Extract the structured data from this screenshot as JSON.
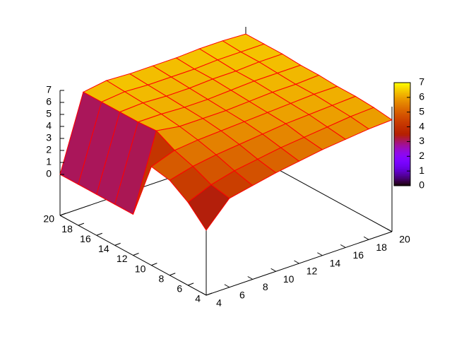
{
  "chart_data": {
    "type": "surface3d",
    "x": [
      4,
      6,
      8,
      10,
      12,
      14,
      16,
      18,
      20
    ],
    "y": [
      4,
      6,
      8,
      10,
      12,
      14,
      16,
      18,
      20
    ],
    "z": [
      [
        2,
        4,
        4.4,
        4.8,
        5.1,
        5.4,
        5.6,
        5.8,
        5.9
      ],
      [
        3.5,
        4.3,
        4.8,
        5.1,
        5.4,
        5.6,
        5.8,
        6.0,
        6.1
      ],
      [
        4.5,
        5.0,
        5.3,
        5.5,
        5.7,
        5.9,
        6.0,
        6.1,
        6.2
      ],
      [
        4.8,
        5.5,
        5.7,
        5.8,
        5.9,
        6.0,
        6.1,
        6.2,
        6.2
      ],
      [
        0,
        6.3,
        6.0,
        6.0,
        6.0,
        6.1,
        6.2,
        6.2,
        6.3
      ],
      [
        0,
        6.2,
        6.2,
        6.1,
        6.1,
        6.2,
        6.3,
        6.3,
        6.3
      ],
      [
        0,
        6.2,
        6.3,
        6.2,
        6.2,
        6.3,
        6.3,
        6.4,
        6.4
      ],
      [
        0,
        6.2,
        6.4,
        6.3,
        6.3,
        6.3,
        6.4,
        6.4,
        6.4
      ],
      [
        0,
        6.2,
        6.5,
        6.4,
        6.4,
        6.4,
        6.5,
        6.5,
        6.4
      ]
    ],
    "xlim": [
      4,
      20
    ],
    "ylim": [
      4,
      20
    ],
    "zlim": [
      0,
      7
    ],
    "xticks": [
      4,
      6,
      8,
      10,
      12,
      14,
      16,
      18,
      20
    ],
    "yticks": [
      4,
      6,
      8,
      10,
      12,
      14,
      16,
      18,
      20
    ],
    "zticks": [
      0,
      1,
      2,
      3,
      4,
      5,
      6,
      7
    ],
    "cblim": [
      0,
      7
    ],
    "cbticks": [
      0,
      1,
      2,
      3,
      4,
      5,
      6,
      7
    ],
    "edge_color": "#ff0000"
  }
}
